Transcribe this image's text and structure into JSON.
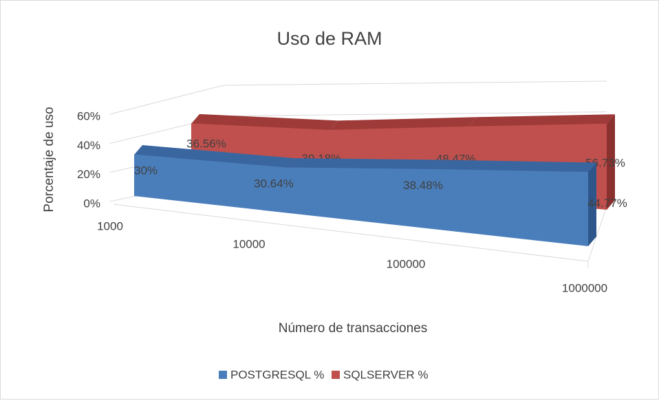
{
  "chart_data": {
    "type": "line3d",
    "title": "Uso de RAM",
    "x_label": "Número de transacciones",
    "y_label": "Porcentaje de uso",
    "categories": [
      "1000",
      "10000",
      "100000",
      "1000000"
    ],
    "series": [
      {
        "name": "POSTGRESQL %",
        "color": "#4a7ebb",
        "values": [
          30,
          30.64,
          38.48,
          44.77
        ],
        "value_labels": [
          "30%",
          "30.64%",
          "38.48%",
          "44.77%"
        ]
      },
      {
        "name": "SQLSERVER %",
        "color": "#c0504d",
        "values": [
          36.56,
          39.18,
          48.47,
          56.73
        ],
        "value_labels": [
          "36.56%",
          "39.18%",
          "48.47%",
          "56.73%"
        ]
      }
    ],
    "ylim": [
      0,
      60
    ],
    "yticks": [
      {
        "value": 0,
        "label": "0%"
      },
      {
        "value": 20,
        "label": "20%"
      },
      {
        "value": 40,
        "label": "40%"
      },
      {
        "value": 60,
        "label": "60%"
      }
    ],
    "grid": true,
    "legend": "bottom"
  }
}
